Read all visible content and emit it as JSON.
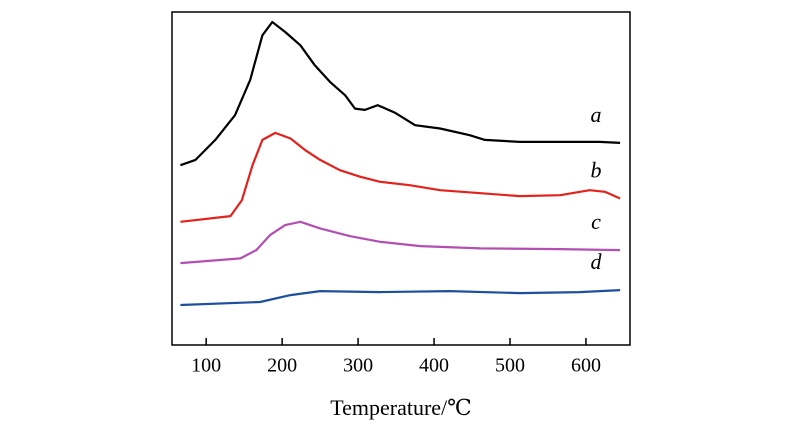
{
  "chart_data": {
    "type": "line",
    "x_label": "Temperature/℃",
    "xlim": [
      55,
      658
    ],
    "xticks": [
      100,
      200,
      300,
      400,
      500,
      600
    ],
    "ylim": [
      0,
      100
    ],
    "series": [
      {
        "name": "a",
        "color": "#000000",
        "x": [
          66,
          86,
          112,
          138,
          158,
          174,
          187,
          204,
          224,
          243,
          263,
          283,
          296,
          309,
          326,
          349,
          375,
          408,
          447,
          467,
          513,
          618,
          645
        ],
        "values": [
          54,
          55.6,
          61.6,
          69,
          79.6,
          93,
          97,
          94,
          90,
          84,
          79,
          75,
          71,
          70.6,
          72,
          69.7,
          66,
          65,
          63,
          61.6,
          61,
          61,
          60.7
        ]
      },
      {
        "name": "b",
        "color": "#e3221d",
        "x": [
          66,
          132,
          147,
          161,
          174,
          191,
          211,
          230,
          250,
          276,
          303,
          329,
          368,
          408,
          461,
          513,
          566,
          605,
          625,
          645
        ],
        "values": [
          37,
          38.7,
          43.5,
          54,
          61.6,
          63.7,
          62,
          58.6,
          55.6,
          52.5,
          50.5,
          49,
          48,
          46.5,
          45.6,
          44.7,
          45,
          46.5,
          46,
          44
        ]
      },
      {
        "name": "c",
        "color": "#b24fb2",
        "x": [
          66,
          145,
          166,
          184,
          204,
          224,
          250,
          289,
          329,
          382,
          461,
          566,
          645
        ],
        "values": [
          24.6,
          26,
          28.5,
          33,
          36,
          37,
          35,
          32.7,
          31,
          29.7,
          29,
          28.8,
          28.5
        ]
      },
      {
        "name": "d",
        "color": "#1e4f9e",
        "x": [
          66,
          171,
          211,
          250,
          329,
          421,
          513,
          592,
          645
        ],
        "values": [
          12,
          12.9,
          15,
          16.2,
          15.9,
          16.2,
          15.6,
          15.9,
          16.5
        ]
      }
    ]
  }
}
